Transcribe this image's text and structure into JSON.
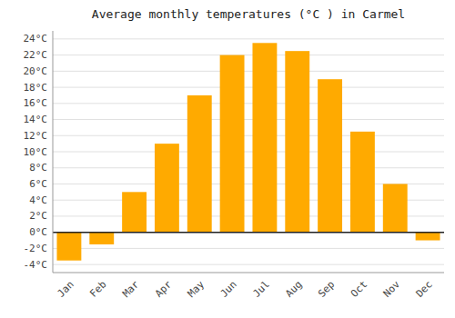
{
  "chart_data": {
    "type": "bar",
    "title": "Average monthly temperatures (°C ) in Carmel",
    "categories": [
      "Jan",
      "Feb",
      "Mar",
      "Apr",
      "May",
      "Jun",
      "Jul",
      "Aug",
      "Sep",
      "Oct",
      "Nov",
      "Dec"
    ],
    "values": [
      -3.5,
      -1.5,
      5.0,
      11.0,
      17.0,
      22.0,
      23.5,
      22.5,
      19.0,
      12.5,
      6.0,
      -1.0
    ],
    "color": "#FFAA00",
    "ylim": [
      -5,
      25
    ],
    "yticks": [
      {
        "value": -4,
        "label": "-4°C"
      },
      {
        "value": -2,
        "label": "-2°C"
      },
      {
        "value": 0,
        "label": "0°C"
      },
      {
        "value": 2,
        "label": "2°C"
      },
      {
        "value": 4,
        "label": "4°C"
      },
      {
        "value": 6,
        "label": "6°C"
      },
      {
        "value": 8,
        "label": "8°C"
      },
      {
        "value": 10,
        "label": "10°C"
      },
      {
        "value": 12,
        "label": "12°C"
      },
      {
        "value": 14,
        "label": "14°C"
      },
      {
        "value": 16,
        "label": "16°C"
      },
      {
        "value": 18,
        "label": "18°C"
      },
      {
        "value": 20,
        "label": "20°C"
      },
      {
        "value": 22,
        "label": "22°C"
      },
      {
        "value": 24,
        "label": "24°C"
      }
    ],
    "grid": true
  }
}
